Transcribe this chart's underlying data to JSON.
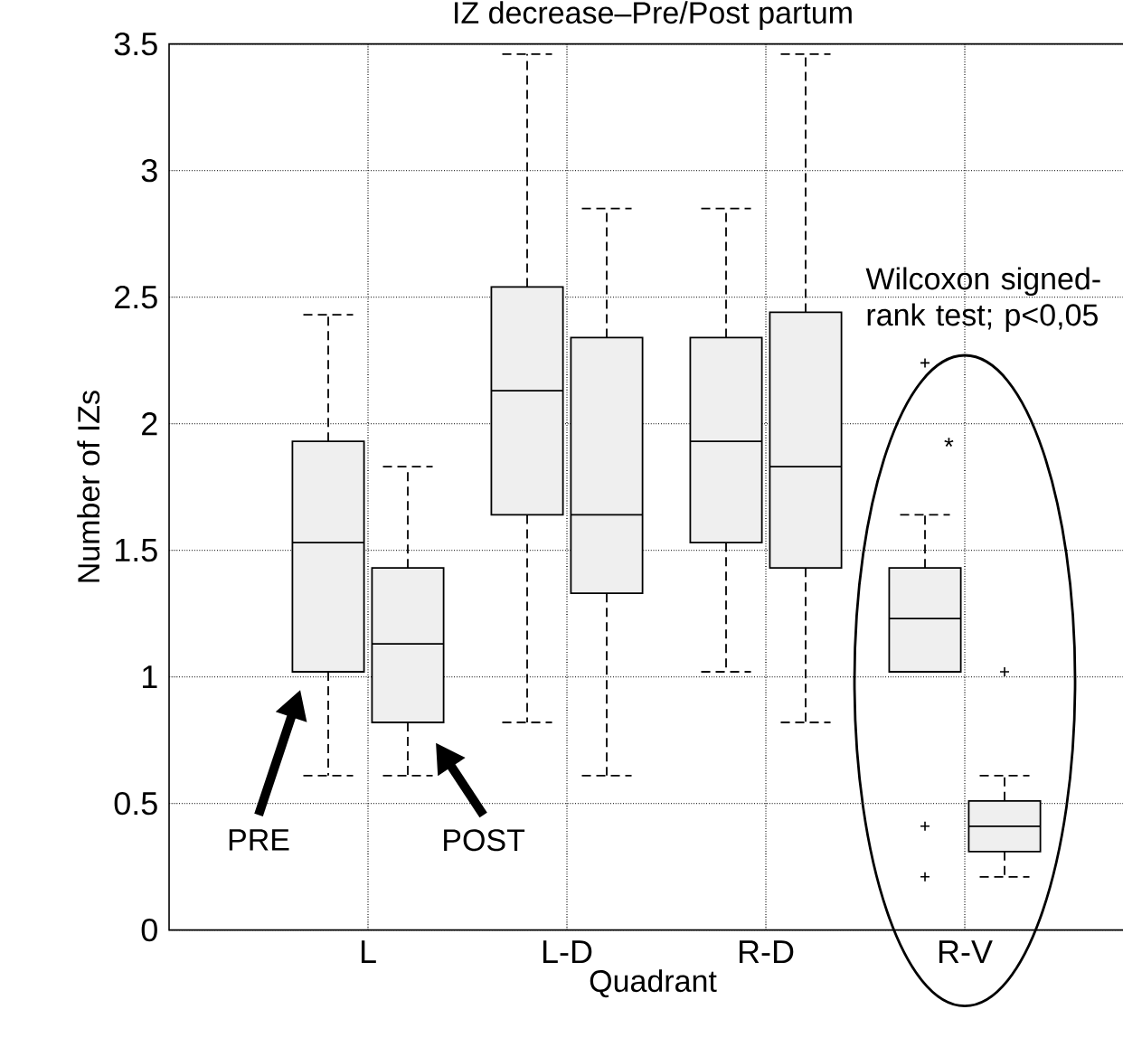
{
  "chart_data": {
    "type": "box",
    "title": "IZ decrease–Pre/Post partum",
    "xlabel": "Quadrant",
    "ylabel": "Number of IZs",
    "categories": [
      "L",
      "L-D",
      "R-D",
      "R-V"
    ],
    "ylim": [
      0,
      3.5
    ],
    "yticks": [
      0,
      0.5,
      1,
      1.5,
      2,
      2.5,
      3,
      3.5
    ],
    "grid": true,
    "series": [
      {
        "color": "#efefef",
        "boxes": [
          {
            "low": 0.61,
            "q1": 1.02,
            "median": 1.53,
            "q3": 1.93,
            "high": 2.43
          },
          {
            "low": 0.82,
            "q1": 1.64,
            "median": 2.13,
            "q3": 2.54,
            "high": 3.46
          },
          {
            "low": 1.02,
            "q1": 1.53,
            "median": 1.93,
            "q3": 2.34,
            "high": 2.85
          },
          {
            "low": 1.02,
            "q1": 1.02,
            "median": 1.23,
            "q3": 1.43,
            "high": 1.64,
            "outliers": [
              2.24,
              0.41,
              0.21
            ]
          }
        ]
      },
      {
        "color": "#efefef",
        "boxes": [
          {
            "low": 0.61,
            "q1": 0.82,
            "median": 1.13,
            "q3": 1.43,
            "high": 1.83
          },
          {
            "low": 0.61,
            "q1": 1.33,
            "median": 1.64,
            "q3": 2.34,
            "high": 2.85
          },
          {
            "low": 0.82,
            "q1": 1.43,
            "median": 1.83,
            "q3": 2.44,
            "high": 3.46
          },
          {
            "low": 0.21,
            "q1": 0.31,
            "median": 0.41,
            "q3": 0.51,
            "high": 0.61,
            "outliers": [
              1.02
            ]
          }
        ]
      }
    ],
    "annotations": [
      "PRE",
      "POST",
      "*",
      "Wilcoxon signed-rank test; p<0,05"
    ]
  }
}
